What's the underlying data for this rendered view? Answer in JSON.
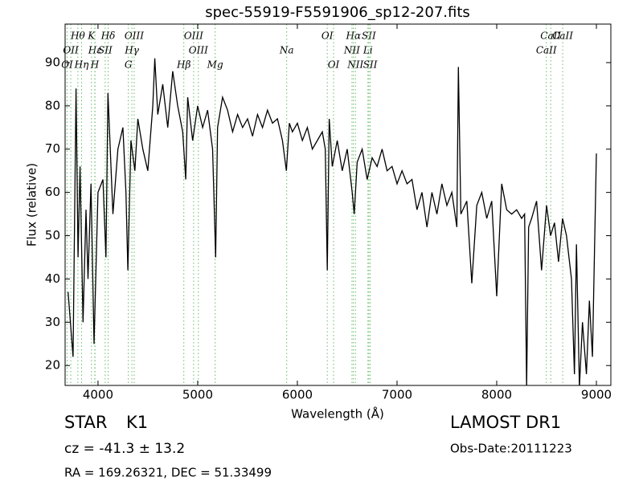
{
  "chart_data": {
    "type": "line",
    "title": "spec-55919-F5591906_sp12-207.fits",
    "xlabel": "Wavelength (Å)",
    "ylabel": "Flux (relative)",
    "xlim": [
      3670,
      9145
    ],
    "ylim": [
      15.4,
      98.9
    ],
    "xticks": [
      4000,
      5000,
      6000,
      7000,
      8000,
      9000
    ],
    "yticks": [
      20,
      30,
      40,
      50,
      60,
      70,
      80,
      90
    ],
    "color": "#000000",
    "line_color": "#66bb66",
    "x": [
      3700,
      3750,
      3780,
      3800,
      3820,
      3850,
      3880,
      3900,
      3930,
      3960,
      4000,
      4050,
      4080,
      4100,
      4150,
      4200,
      4250,
      4280,
      4300,
      4330,
      4370,
      4400,
      4450,
      4500,
      4550,
      4570,
      4600,
      4650,
      4700,
      4750,
      4800,
      4850,
      4880,
      4900,
      4950,
      5000,
      5050,
      5100,
      5150,
      5180,
      5200,
      5250,
      5300,
      5350,
      5400,
      5450,
      5500,
      5550,
      5600,
      5650,
      5700,
      5750,
      5800,
      5850,
      5890,
      5920,
      5950,
      6000,
      6050,
      6100,
      6150,
      6200,
      6250,
      6280,
      6300,
      6320,
      6350,
      6400,
      6450,
      6500,
      6550,
      6570,
      6600,
      6650,
      6700,
      6750,
      6800,
      6850,
      6900,
      6950,
      7000,
      7050,
      7100,
      7150,
      7200,
      7250,
      7300,
      7350,
      7400,
      7450,
      7500,
      7550,
      7600,
      7615,
      7640,
      7700,
      7750,
      7800,
      7850,
      7900,
      7950,
      8000,
      8050,
      8100,
      8150,
      8200,
      8250,
      8280,
      8300,
      8320,
      8350,
      8400,
      8450,
      8500,
      8540,
      8580,
      8620,
      8660,
      8700,
      8750,
      8780,
      8800,
      8830,
      8860,
      8900,
      8930,
      8960,
      9000
    ],
    "values": [
      37,
      22,
      84,
      45,
      66,
      30,
      56,
      40,
      62,
      25,
      60,
      63,
      45,
      83,
      55,
      70,
      75,
      60,
      42,
      72,
      65,
      77,
      70,
      65,
      80,
      91,
      78,
      85,
      75,
      88,
      80,
      74,
      63,
      82,
      72,
      80,
      75,
      79,
      70,
      45,
      75,
      82,
      79,
      74,
      78,
      75,
      77,
      73,
      78,
      75,
      79,
      76,
      77,
      72,
      65,
      76,
      74,
      76,
      72,
      75,
      70,
      72,
      74,
      70,
      42,
      77,
      66,
      72,
      65,
      70,
      60,
      55,
      67,
      70,
      63,
      68,
      66,
      70,
      65,
      66,
      62,
      65,
      62,
      63,
      56,
      60,
      52,
      60,
      55,
      62,
      57,
      60,
      52,
      89,
      55,
      58,
      39,
      57,
      60,
      54,
      58,
      36,
      62,
      56,
      55,
      56,
      54,
      55,
      15,
      52,
      54,
      58,
      42,
      57,
      50,
      53,
      44,
      54,
      50,
      40,
      18,
      48,
      15,
      30,
      18,
      35,
      22,
      69
    ],
    "lines": [
      {
        "name": "Hθ",
        "wavelength": 3798
      },
      {
        "name": "OII",
        "wavelength": 3727
      },
      {
        "name": "OI",
        "wavelength": 3690
      },
      {
        "name": "K",
        "wavelength": 3934
      },
      {
        "name": "Hε",
        "wavelength": 3970
      },
      {
        "name": "Hη",
        "wavelength": 3835
      },
      {
        "name": "Hδ",
        "wavelength": 4102
      },
      {
        "name": "SII",
        "wavelength": 4072
      },
      {
        "name": "H",
        "wavelength": 3968
      },
      {
        "name": "OIII",
        "wavelength": 4363
      },
      {
        "name": "Hγ",
        "wavelength": 4340
      },
      {
        "name": "G",
        "wavelength": 4304
      },
      {
        "name": "OIII",
        "wavelength": 4959
      },
      {
        "name": "OIII",
        "wavelength": 5007
      },
      {
        "name": "Hβ",
        "wavelength": 4861
      },
      {
        "name": "OI",
        "wavelength": 6300
      },
      {
        "name": "Na",
        "wavelength": 5893
      },
      {
        "name": "Mg",
        "wavelength": 5175
      },
      {
        "name": "Hα",
        "wavelength": 6563
      },
      {
        "name": "NII",
        "wavelength": 6548
      },
      {
        "name": "OI",
        "wavelength": 6363
      },
      {
        "name": "SII",
        "wavelength": 6717
      },
      {
        "name": "Li",
        "wavelength": 6708
      },
      {
        "name": "NII",
        "wavelength": 6583
      },
      {
        "name": "CaII",
        "wavelength": 8542
      },
      {
        "name": "CaII",
        "wavelength": 8498
      },
      {
        "name": "SII",
        "wavelength": 6731
      },
      {
        "name": "CaII",
        "wavelength": 8662
      }
    ],
    "object_class": "STAR",
    "subclass": "K1",
    "redshift": "cz = -41.3 ± 13.2",
    "survey": "LAMOST DR1",
    "obs_date": "Obs-Date:20111223",
    "coords": "RA = 169.26321, DEC = 51.33499"
  }
}
